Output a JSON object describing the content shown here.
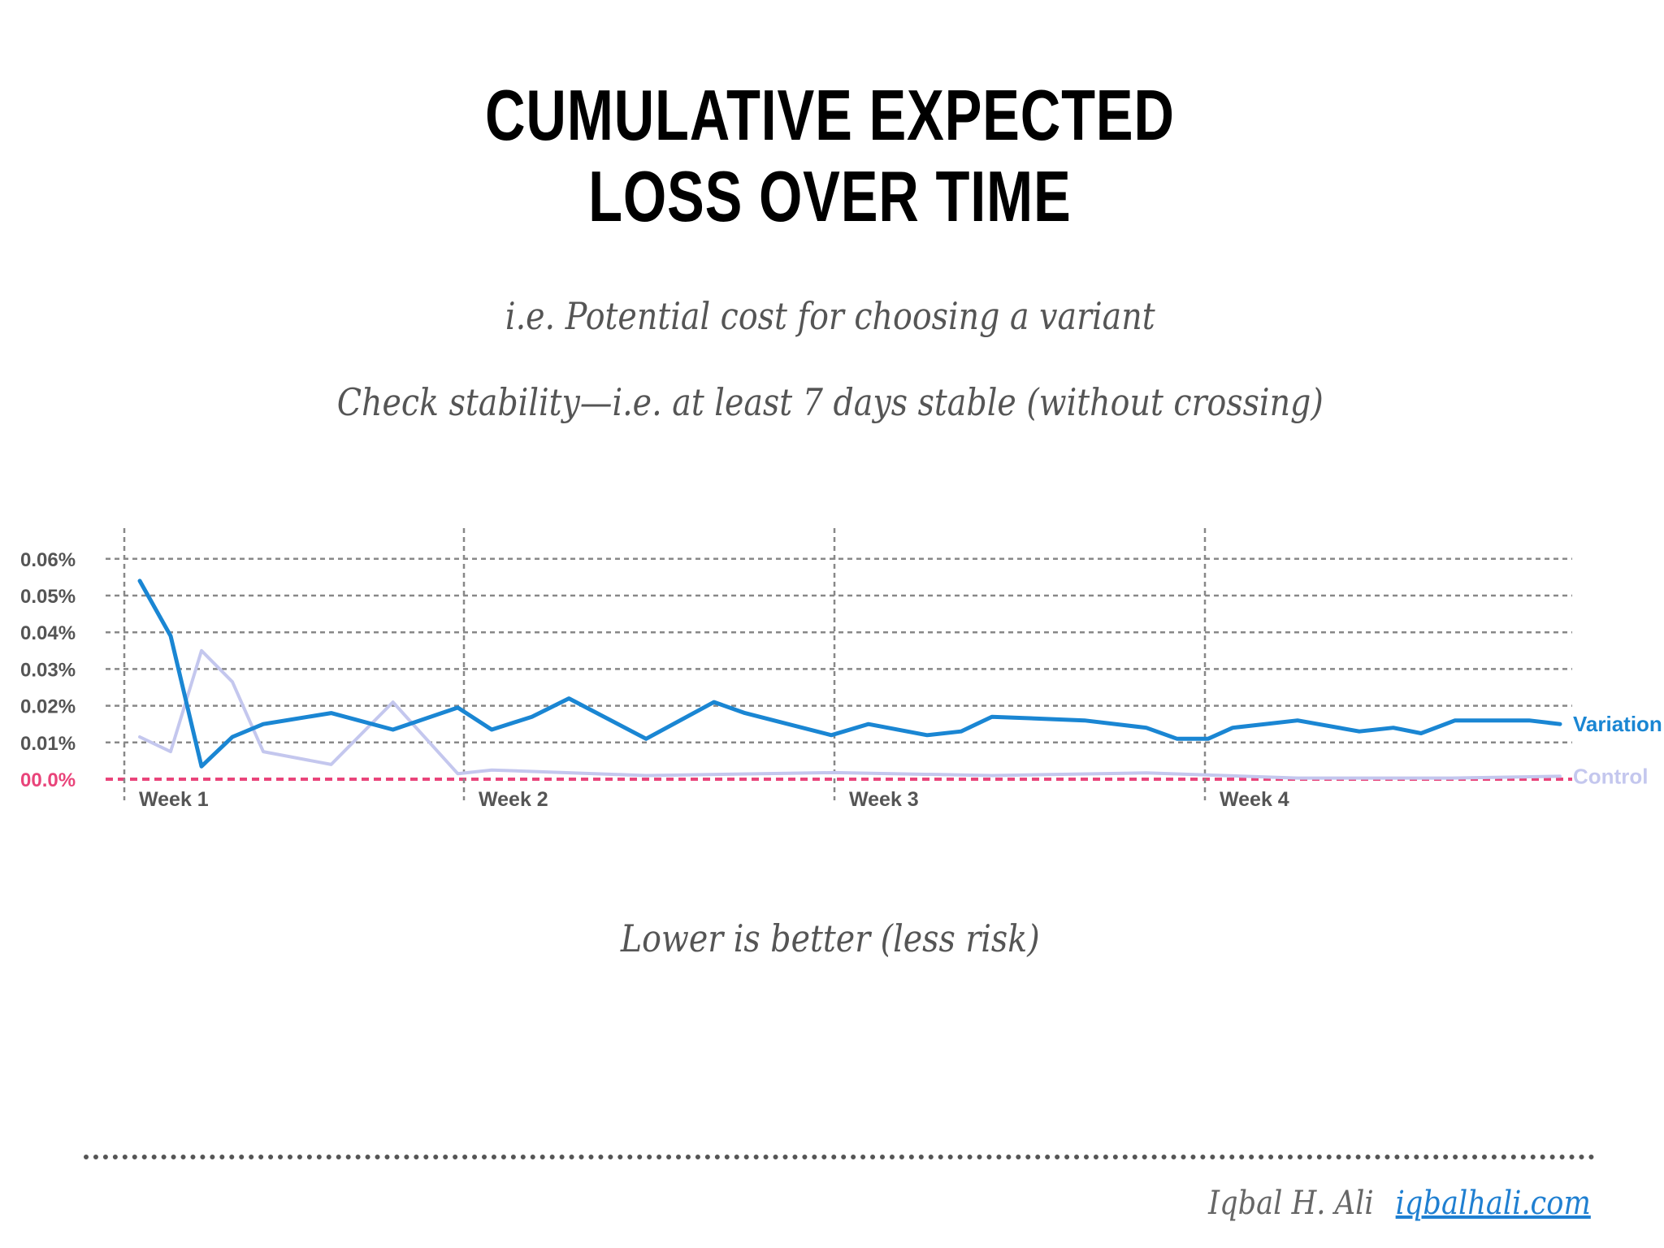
{
  "slide": {
    "title_line1": "CUMULATIVE EXPECTED",
    "title_line2": "LOSS OVER TIME",
    "subtitle1": "i.e. Potential cost for choosing a variant",
    "subtitle2": "Check stability—i.e. at least 7 days stable (without crossing)",
    "note": "Lower is better (less risk)",
    "author": "Iqbal H. Ali",
    "link": "iqbalhali.com"
  },
  "colors": {
    "variation": "#1a86d3",
    "control": "#c4c7ee",
    "baseline": "#e9447a",
    "grid": "#888888",
    "link": "#1f7fd1"
  },
  "chart_data": {
    "type": "line",
    "title": "",
    "xlabel": "",
    "ylabel": "",
    "ylim": [
      0,
      0.06
    ],
    "yticks": [
      {
        "value": 0.06,
        "label": "0.06%"
      },
      {
        "value": 0.05,
        "label": "0.05%"
      },
      {
        "value": 0.04,
        "label": "0.04%"
      },
      {
        "value": 0.03,
        "label": "0.03%"
      },
      {
        "value": 0.02,
        "label": "0.02%"
      },
      {
        "value": 0.01,
        "label": "0.01%"
      },
      {
        "value": 0.0,
        "label": "00.0%"
      }
    ],
    "week_labels": [
      "Week 1",
      "Week 2",
      "Week 3",
      "Week 4"
    ],
    "week_start_day": [
      0,
      11,
      23,
      35
    ],
    "x_max_day": 46.5,
    "grid": true,
    "series": [
      {
        "name": "Variation",
        "values": [
          [
            0.5,
            0.054
          ],
          [
            1.5,
            0.039
          ],
          [
            2.5,
            0.0035
          ],
          [
            3.5,
            0.0115
          ],
          [
            4.5,
            0.015
          ],
          [
            6.7,
            0.018
          ],
          [
            8.7,
            0.0135
          ],
          [
            10.8,
            0.0195
          ],
          [
            11.9,
            0.0135
          ],
          [
            13.2,
            0.017
          ],
          [
            14.4,
            0.022
          ],
          [
            16.9,
            0.011
          ],
          [
            19.1,
            0.021
          ],
          [
            20.1,
            0.018
          ],
          [
            22.9,
            0.012
          ],
          [
            24.1,
            0.015
          ],
          [
            26.0,
            0.012
          ],
          [
            27.1,
            0.013
          ],
          [
            28.1,
            0.017
          ],
          [
            31.1,
            0.016
          ],
          [
            33.1,
            0.014
          ],
          [
            34.1,
            0.011
          ],
          [
            35.1,
            0.011
          ],
          [
            35.9,
            0.014
          ],
          [
            38.0,
            0.016
          ],
          [
            40.0,
            0.013
          ],
          [
            41.1,
            0.014
          ],
          [
            42.0,
            0.0125
          ],
          [
            43.1,
            0.016
          ],
          [
            45.5,
            0.016
          ],
          [
            46.5,
            0.015
          ]
        ]
      },
      {
        "name": "Control",
        "values": [
          [
            0.5,
            0.0115
          ],
          [
            1.5,
            0.0075
          ],
          [
            2.5,
            0.035
          ],
          [
            3.5,
            0.0265
          ],
          [
            4.5,
            0.0075
          ],
          [
            6.7,
            0.004
          ],
          [
            8.7,
            0.021
          ],
          [
            10.8,
            0.0015
          ],
          [
            11.9,
            0.0025
          ],
          [
            16.9,
            0.001
          ],
          [
            23.0,
            0.0018
          ],
          [
            28.1,
            0.001
          ],
          [
            33.1,
            0.0017
          ],
          [
            38.0,
            0.0003
          ],
          [
            43.0,
            0.0003
          ],
          [
            46.5,
            0.0008
          ]
        ]
      }
    ]
  }
}
